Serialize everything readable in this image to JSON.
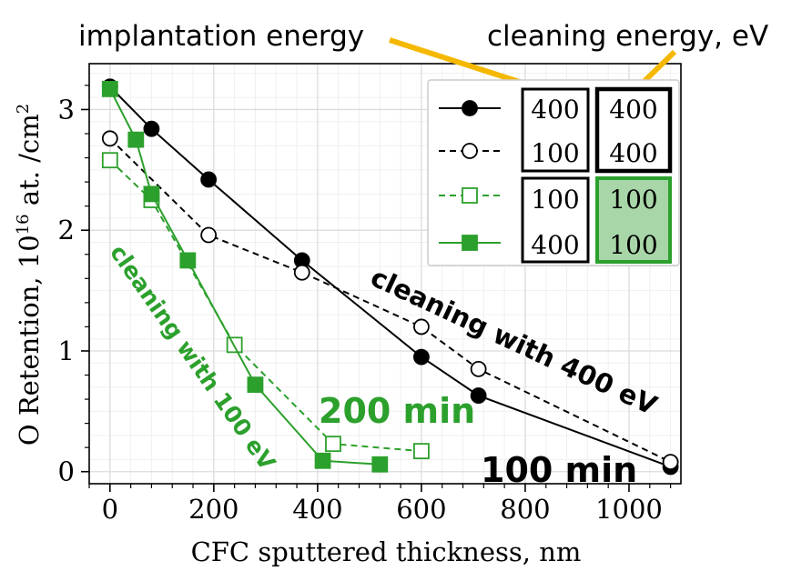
{
  "chart_data": {
    "type": "line",
    "xlabel": "CFC sputtered thickness, nm",
    "ylabel": "O Retention, 10",
    "ylabel_exp": "16",
    "ylabel_unit": " at. /cm",
    "ylabel_unit_exp": "2",
    "xlim": [
      -40,
      1100
    ],
    "ylim": [
      -0.1,
      3.38
    ],
    "x_ticks": [
      0,
      200,
      400,
      600,
      800,
      1000
    ],
    "y_ticks": [
      0,
      1,
      2,
      3
    ],
    "x_tick_labels": [
      "0",
      "200",
      "400",
      "600",
      "800",
      "1000"
    ],
    "y_tick_labels": [
      "0",
      "1",
      "2",
      "3"
    ],
    "grid": true,
    "legend_position": "top-right",
    "series": [
      {
        "style": "filled-circle-solid",
        "color": "#000000",
        "implantation": "400",
        "cleaning": "400",
        "x": [
          0,
          80,
          190,
          370,
          600,
          710,
          1080
        ],
        "y": [
          3.19,
          2.84,
          2.42,
          1.75,
          0.95,
          0.63,
          0.04
        ]
      },
      {
        "style": "open-circle-dashed",
        "color": "#000000",
        "implantation": "100",
        "cleaning": "400",
        "x": [
          0,
          190,
          370,
          600,
          710,
          1080
        ],
        "y": [
          2.76,
          1.96,
          1.65,
          1.2,
          0.85,
          0.08
        ]
      },
      {
        "style": "open-square-dashed",
        "color": "#2ca02c",
        "implantation": "100",
        "cleaning": "100",
        "x": [
          0,
          80,
          240,
          430,
          600
        ],
        "y": [
          2.58,
          2.25,
          1.05,
          0.23,
          0.17
        ]
      },
      {
        "style": "filled-square-solid",
        "color": "#2ca02c",
        "implantation": "400",
        "cleaning": "100",
        "x": [
          0,
          50,
          80,
          150,
          280,
          410,
          520
        ],
        "y": [
          3.17,
          2.75,
          2.3,
          1.75,
          0.72,
          0.09,
          0.06
        ]
      }
    ],
    "annotations": {
      "implantation_energy": "implantation energy",
      "cleaning_energy": "cleaning energy, eV",
      "cleaning_400": "cleaning with 400 eV",
      "cleaning_100": "cleaning with 100 eV",
      "time_200": "200 min",
      "time_100": "100 min"
    }
  }
}
